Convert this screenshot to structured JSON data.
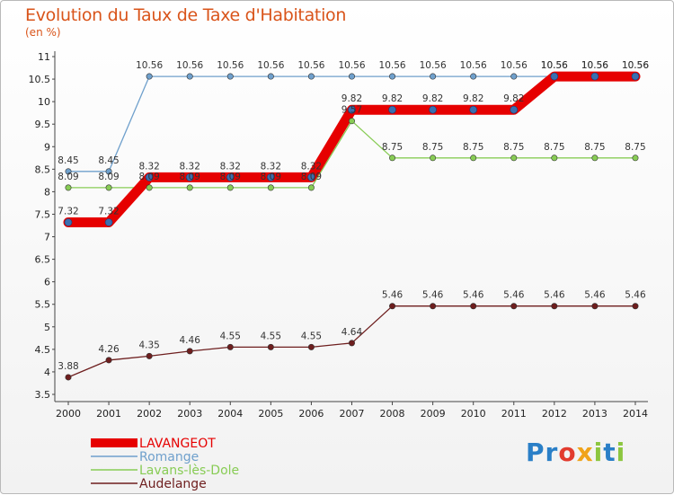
{
  "title": "Evolution du Taux de Taxe d'Habitation",
  "unit": "(en %)",
  "logo": {
    "letters": [
      {
        "ch": "P",
        "color": "#2a7fc7"
      },
      {
        "ch": "r",
        "color": "#2a7fc7"
      },
      {
        "ch": "o",
        "color": "#e23b2e"
      },
      {
        "ch": "x",
        "color": "#f0a31a"
      },
      {
        "ch": "i",
        "color": "#8cc63f"
      },
      {
        "ch": "t",
        "color": "#2a7fc7"
      },
      {
        "ch": "i",
        "color": "#8cc63f"
      }
    ]
  },
  "chart_data": {
    "type": "line",
    "x": [
      "2000",
      "2001",
      "2002",
      "2003",
      "2004",
      "2005",
      "2006",
      "2007",
      "2008",
      "2009",
      "2010",
      "2011",
      "2012",
      "2013",
      "2014"
    ],
    "ylim": [
      3.5,
      11
    ],
    "yticks": [
      "3.5",
      "4",
      "4.5",
      "5",
      "5.5",
      "6",
      "6.5",
      "7",
      "7.5",
      "8",
      "8.5",
      "9",
      "9.5",
      "10",
      "10.5",
      "11"
    ],
    "grid": false,
    "legend_position": "bottom-left",
    "series": [
      {
        "name": "Audelange",
        "color": "#6e1e1e",
        "values": [
          3.88,
          4.26,
          4.35,
          4.46,
          4.55,
          4.55,
          4.55,
          4.64,
          5.46,
          5.46,
          5.46,
          5.46,
          5.46,
          5.46,
          5.46
        ],
        "labels": [
          "3.88",
          "4.26",
          "4.35",
          "4.46",
          "4.55",
          "4.55",
          "4.55",
          "4.64",
          "5.46",
          "5.46",
          "5.46",
          "5.46",
          "5.46",
          "5.46",
          "5.46"
        ]
      },
      {
        "name": "Lavans-lès-Dole",
        "color": "#88cc55",
        "values": [
          8.09,
          8.09,
          8.09,
          8.09,
          8.09,
          8.09,
          8.09,
          9.57,
          8.75,
          8.75,
          8.75,
          8.75,
          8.75,
          8.75,
          8.75
        ],
        "labels": [
          "8.09",
          "8.09",
          "8.09",
          "8.09",
          "8.09",
          "8.09",
          "8.09",
          "9.57",
          "8.75",
          "8.75",
          "8.75",
          "8.75",
          "8.75",
          "8.75",
          "8.75"
        ]
      },
      {
        "name": "Romange",
        "color": "#6fa0cc",
        "values": [
          8.45,
          8.45,
          10.56,
          10.56,
          10.56,
          10.56,
          10.56,
          10.56,
          10.56,
          10.56,
          10.56,
          10.56,
          10.56,
          10.56,
          10.56
        ],
        "labels": [
          "8.45",
          "8.45",
          "10.56",
          "10.56",
          "10.56",
          "10.56",
          "10.56",
          "10.56",
          "10.56",
          "10.56",
          "10.56",
          "10.56",
          "10.56",
          "10.56",
          "10.56"
        ]
      },
      {
        "name": "LAVANGEOT",
        "color": "#e60000",
        "values": [
          7.32,
          7.32,
          8.32,
          8.32,
          8.32,
          8.32,
          8.32,
          9.82,
          9.82,
          9.82,
          9.82,
          9.82,
          10.56,
          10.56,
          10.56
        ],
        "labels": [
          "7.32",
          "7.32",
          "8.32",
          "8.32",
          "8.32",
          "8.32",
          "8.32",
          "9.82",
          "9.82",
          "9.82",
          "9.82",
          "9.82",
          "10.56",
          "10.56",
          "10.56"
        ]
      }
    ]
  }
}
